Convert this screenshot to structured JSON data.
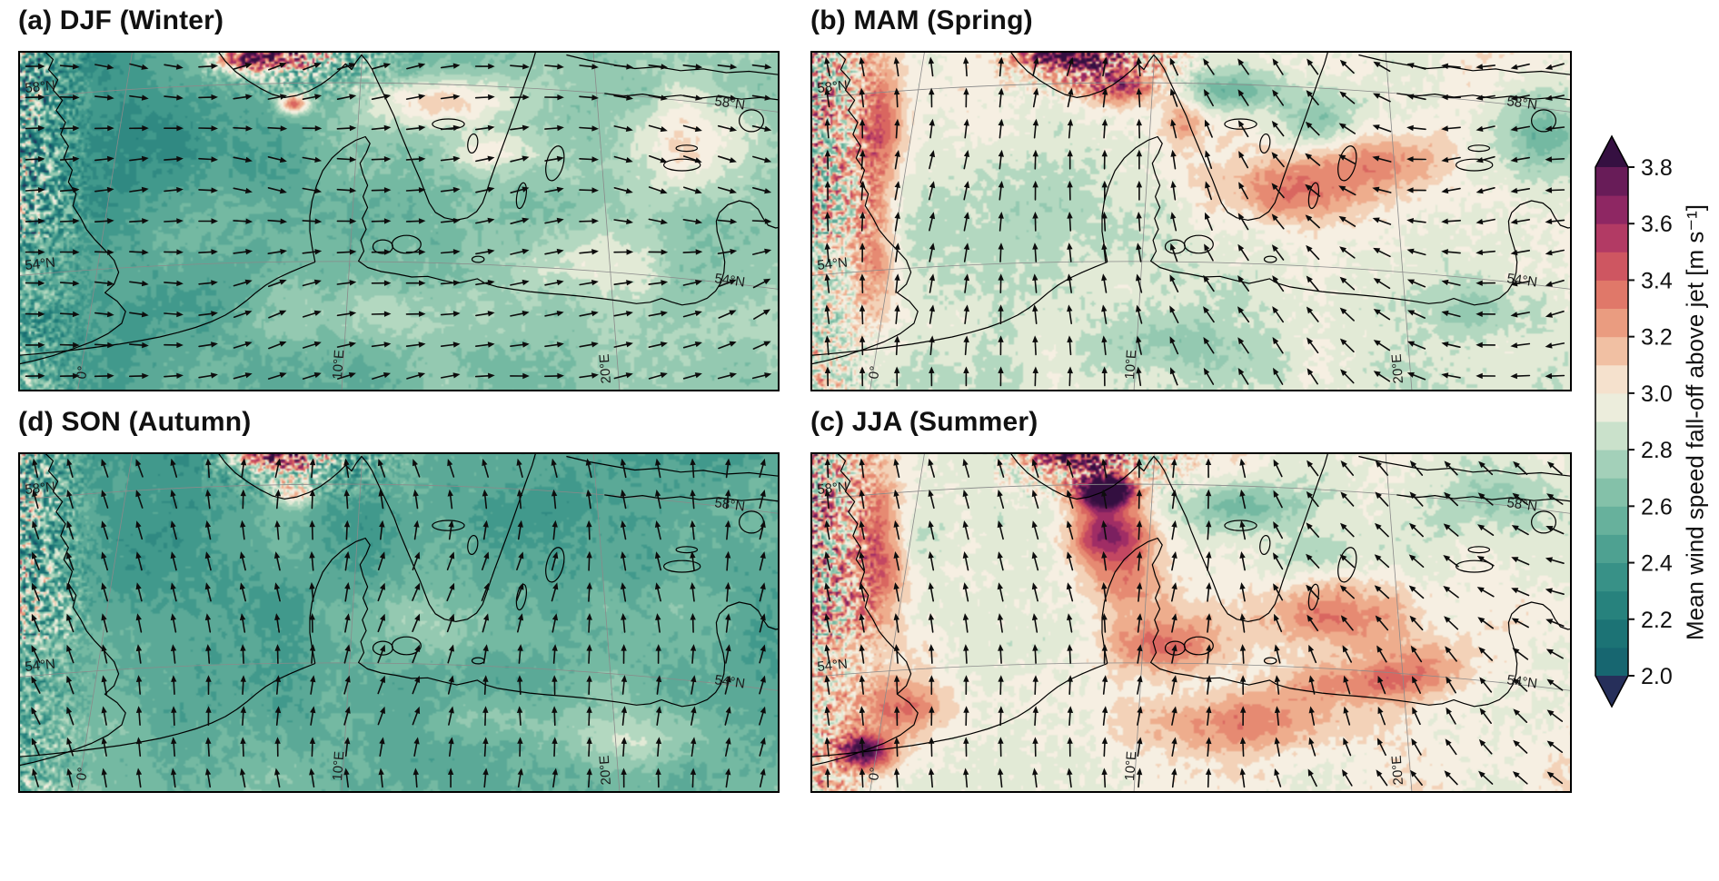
{
  "figure": {
    "panels": [
      {
        "id": "a",
        "label": "(a) DJF (Winter)",
        "season": "winter"
      },
      {
        "id": "b",
        "label": "(b) MAM (Spring)",
        "season": "spring"
      },
      {
        "id": "d",
        "label": "(d) SON (Autumn)",
        "season": "autumn"
      },
      {
        "id": "c",
        "label": "(c) JJA (Summer)",
        "season": "summer"
      }
    ],
    "panel_order": [
      "a",
      "b",
      "d",
      "c"
    ]
  },
  "map_labels": {
    "lat": [
      "58°N",
      "54°N"
    ],
    "lon": [
      "0°",
      "10°E",
      "20°E"
    ]
  },
  "colorbar": {
    "label": "Mean wind speed fall-off above jet [m s⁻¹]",
    "min": 2.0,
    "max": 3.8,
    "tick_step": 0.2,
    "ticks_top_to_bottom": [
      "3.8",
      "3.6",
      "3.4",
      "3.2",
      "3.0",
      "2.8",
      "2.6",
      "2.4",
      "2.2",
      "2.0"
    ],
    "extend": "both"
  },
  "chart_data": {
    "type": "heatmap",
    "panels": [
      {
        "label": "(a) DJF (Winter)",
        "season": "winter",
        "arrow_direction": "eastward",
        "typical_values": {
          "north_sea": 2.5,
          "baltic_sea": 2.8,
          "sweden": 3.0,
          "scandinavian_mountains": 3.7,
          "britain": 2.6
        }
      },
      {
        "label": "(b) MAM (Spring)",
        "season": "spring",
        "arrow_direction": "northward over North Sea, veering westward over Baltic",
        "typical_values": {
          "north_sea": 2.9,
          "baltic_sea": 3.2,
          "sweden": 2.7,
          "scandinavian_mountains": 3.7,
          "british_coast": 3.3
        }
      },
      {
        "label": "(d) SON (Autumn)",
        "season": "autumn",
        "arrow_direction": "northward",
        "typical_values": {
          "north_sea": 2.5,
          "baltic_sea": 2.6,
          "sweden": 2.5,
          "scandinavian_mountains": 3.7
        }
      },
      {
        "label": "(c) JJA (Summer)",
        "season": "summer",
        "arrow_direction": "northward, veering northwestward eastward",
        "typical_values": {
          "north_sea": 3.0,
          "baltic_sea": 3.2,
          "south_norway_wake": 3.8,
          "sweden": 2.7
        }
      }
    ],
    "colorbar": {
      "label": "Mean wind speed fall-off above jet [m s⁻¹]",
      "min": 2.0,
      "max": 3.8,
      "ticks": [
        2.0,
        2.2,
        2.4,
        2.6,
        2.8,
        3.0,
        3.2,
        3.4,
        3.6,
        3.8
      ],
      "extend": "both"
    },
    "graticule": {
      "latitudes": [
        "58°N",
        "54°N"
      ],
      "longitudes": [
        "0°",
        "10°E",
        "20°E"
      ]
    }
  }
}
